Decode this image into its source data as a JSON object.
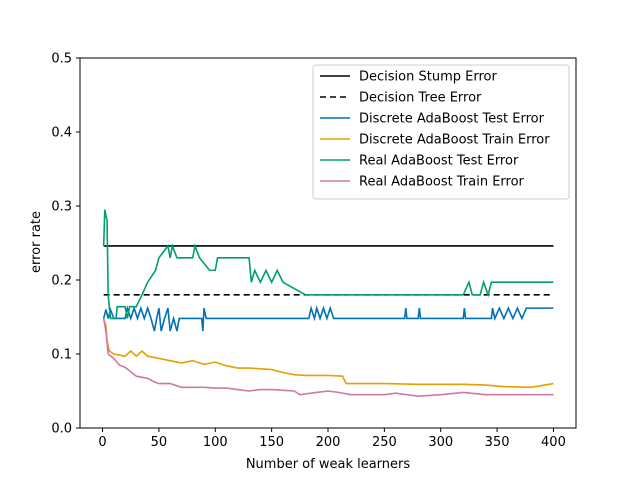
{
  "chart_data": {
    "type": "line",
    "title": "",
    "xlabel": "Number of weak learners",
    "ylabel": "error rate",
    "xlim": [
      -20,
      420
    ],
    "ylim": [
      0.0,
      0.5
    ],
    "xticks": [
      0,
      50,
      100,
      150,
      200,
      250,
      300,
      350,
      400
    ],
    "yticks": [
      0.0,
      0.1,
      0.2,
      0.3,
      0.4,
      0.5
    ],
    "xtick_labels": [
      "0",
      "50",
      "100",
      "150",
      "200",
      "250",
      "300",
      "350",
      "400"
    ],
    "ytick_labels": [
      "0.0",
      "0.1",
      "0.2",
      "0.3",
      "0.4",
      "0.5"
    ],
    "grid": false,
    "legend_position": "top-right",
    "series": [
      {
        "name": "Decision Stump Error",
        "color": "#000000",
        "dash": "solid",
        "points": [
          [
            1,
            0.246
          ],
          [
            400,
            0.246
          ]
        ]
      },
      {
        "name": "Decision Tree Error",
        "color": "#000000",
        "dash": "dashed",
        "points": [
          [
            1,
            0.18
          ],
          [
            400,
            0.18
          ]
        ]
      },
      {
        "name": "Discrete AdaBoost Test Error",
        "color": "#0072b2",
        "dash": "solid",
        "points": [
          [
            1,
            0.148
          ],
          [
            3,
            0.16
          ],
          [
            5,
            0.148
          ],
          [
            7,
            0.16
          ],
          [
            10,
            0.148
          ],
          [
            20,
            0.148
          ],
          [
            22,
            0.162
          ],
          [
            25,
            0.148
          ],
          [
            28,
            0.162
          ],
          [
            31,
            0.148
          ],
          [
            34,
            0.162
          ],
          [
            37,
            0.148
          ],
          [
            40,
            0.162
          ],
          [
            43,
            0.148
          ],
          [
            46,
            0.131
          ],
          [
            48,
            0.148
          ],
          [
            50,
            0.162
          ],
          [
            52,
            0.131
          ],
          [
            55,
            0.148
          ],
          [
            58,
            0.162
          ],
          [
            60,
            0.131
          ],
          [
            63,
            0.148
          ],
          [
            66,
            0.131
          ],
          [
            68,
            0.148
          ],
          [
            88,
            0.148
          ],
          [
            89,
            0.131
          ],
          [
            90,
            0.162
          ],
          [
            92,
            0.148
          ],
          [
            183,
            0.148
          ],
          [
            185,
            0.162
          ],
          [
            188,
            0.148
          ],
          [
            190,
            0.162
          ],
          [
            193,
            0.148
          ],
          [
            196,
            0.162
          ],
          [
            199,
            0.148
          ],
          [
            202,
            0.162
          ],
          [
            205,
            0.148
          ],
          [
            268,
            0.148
          ],
          [
            269,
            0.162
          ],
          [
            270,
            0.148
          ],
          [
            280,
            0.148
          ],
          [
            281,
            0.162
          ],
          [
            282,
            0.148
          ],
          [
            320,
            0.148
          ],
          [
            321,
            0.162
          ],
          [
            322,
            0.148
          ],
          [
            345,
            0.148
          ],
          [
            346,
            0.162
          ],
          [
            348,
            0.148
          ],
          [
            352,
            0.162
          ],
          [
            356,
            0.148
          ],
          [
            360,
            0.162
          ],
          [
            364,
            0.148
          ],
          [
            368,
            0.162
          ],
          [
            372,
            0.148
          ],
          [
            376,
            0.162
          ],
          [
            400,
            0.162
          ]
        ]
      },
      {
        "name": "Discrete AdaBoost Train Error",
        "color": "#e69f00",
        "dash": "solid",
        "points": [
          [
            1,
            0.148
          ],
          [
            3,
            0.138
          ],
          [
            4,
            0.118
          ],
          [
            6,
            0.104
          ],
          [
            10,
            0.1
          ],
          [
            20,
            0.097
          ],
          [
            25,
            0.104
          ],
          [
            30,
            0.097
          ],
          [
            35,
            0.104
          ],
          [
            40,
            0.097
          ],
          [
            50,
            0.094
          ],
          [
            60,
            0.091
          ],
          [
            70,
            0.088
          ],
          [
            80,
            0.091
          ],
          [
            90,
            0.086
          ],
          [
            100,
            0.089
          ],
          [
            110,
            0.084
          ],
          [
            120,
            0.081
          ],
          [
            130,
            0.081
          ],
          [
            140,
            0.08
          ],
          [
            150,
            0.079
          ],
          [
            160,
            0.075
          ],
          [
            170,
            0.072
          ],
          [
            180,
            0.071
          ],
          [
            200,
            0.071
          ],
          [
            213,
            0.07
          ],
          [
            216,
            0.06
          ],
          [
            250,
            0.06
          ],
          [
            280,
            0.059
          ],
          [
            320,
            0.059
          ],
          [
            340,
            0.058
          ],
          [
            355,
            0.056
          ],
          [
            380,
            0.055
          ],
          [
            400,
            0.06
          ]
        ]
      },
      {
        "name": "Real AdaBoost Test Error",
        "color": "#009e73",
        "dash": "solid",
        "points": [
          [
            1,
            0.246
          ],
          [
            2,
            0.295
          ],
          [
            4,
            0.28
          ],
          [
            5,
            0.18
          ],
          [
            7,
            0.148
          ],
          [
            12,
            0.148
          ],
          [
            13,
            0.164
          ],
          [
            20,
            0.164
          ],
          [
            22,
            0.148
          ],
          [
            24,
            0.164
          ],
          [
            30,
            0.164
          ],
          [
            35,
            0.18
          ],
          [
            40,
            0.197
          ],
          [
            47,
            0.213
          ],
          [
            50,
            0.23
          ],
          [
            58,
            0.246
          ],
          [
            60,
            0.23
          ],
          [
            62,
            0.246
          ],
          [
            66,
            0.23
          ],
          [
            80,
            0.23
          ],
          [
            82,
            0.246
          ],
          [
            86,
            0.23
          ],
          [
            95,
            0.213
          ],
          [
            100,
            0.213
          ],
          [
            102,
            0.23
          ],
          [
            130,
            0.23
          ],
          [
            132,
            0.197
          ],
          [
            135,
            0.213
          ],
          [
            140,
            0.197
          ],
          [
            145,
            0.213
          ],
          [
            150,
            0.197
          ],
          [
            155,
            0.213
          ],
          [
            160,
            0.197
          ],
          [
            180,
            0.18
          ],
          [
            320,
            0.18
          ],
          [
            325,
            0.197
          ],
          [
            328,
            0.18
          ],
          [
            335,
            0.18
          ],
          [
            338,
            0.197
          ],
          [
            342,
            0.18
          ],
          [
            345,
            0.197
          ],
          [
            400,
            0.197
          ]
        ]
      },
      {
        "name": "Real AdaBoost Train Error",
        "color": "#cc79a7",
        "dash": "solid",
        "points": [
          [
            1,
            0.148
          ],
          [
            3,
            0.13
          ],
          [
            5,
            0.1
          ],
          [
            10,
            0.094
          ],
          [
            15,
            0.085
          ],
          [
            20,
            0.082
          ],
          [
            25,
            0.076
          ],
          [
            30,
            0.07
          ],
          [
            40,
            0.067
          ],
          [
            45,
            0.063
          ],
          [
            50,
            0.06
          ],
          [
            60,
            0.06
          ],
          [
            70,
            0.055
          ],
          [
            80,
            0.055
          ],
          [
            90,
            0.055
          ],
          [
            100,
            0.054
          ],
          [
            110,
            0.054
          ],
          [
            120,
            0.052
          ],
          [
            130,
            0.05
          ],
          [
            140,
            0.052
          ],
          [
            150,
            0.052
          ],
          [
            170,
            0.05
          ],
          [
            175,
            0.045
          ],
          [
            190,
            0.048
          ],
          [
            200,
            0.05
          ],
          [
            210,
            0.048
          ],
          [
            220,
            0.045
          ],
          [
            250,
            0.045
          ],
          [
            260,
            0.047
          ],
          [
            280,
            0.043
          ],
          [
            300,
            0.045
          ],
          [
            320,
            0.048
          ],
          [
            340,
            0.045
          ],
          [
            360,
            0.045
          ],
          [
            390,
            0.045
          ],
          [
            400,
            0.045
          ]
        ]
      }
    ]
  }
}
